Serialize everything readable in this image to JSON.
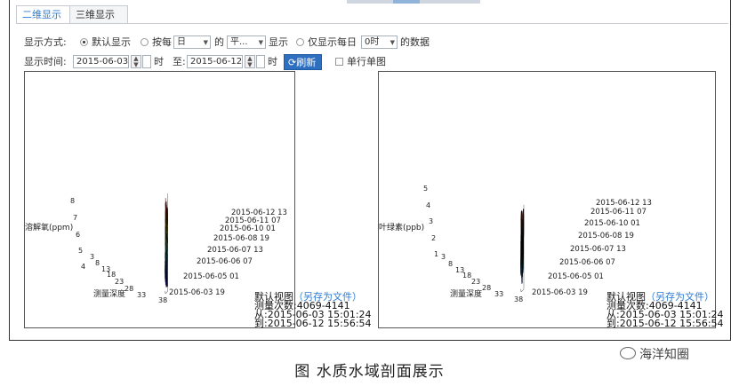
{
  "tabs": [
    {
      "label": "二维显示",
      "active": true
    },
    {
      "label": "三维显示",
      "active": false
    }
  ],
  "display_mode": {
    "label": "显示方式:",
    "option_default": "默认显示",
    "option_by_each": "按每",
    "unit_select": "日",
    "of": "的",
    "stat_select": "平...",
    "show": "显示",
    "option_only_daily": "仅显示每日",
    "hour_select": "0时",
    "data_suffix": "的数据"
  },
  "display_time": {
    "label": "显示时间:",
    "start_date": "2015-06-03",
    "start_hour_unit": "时",
    "to": "至:",
    "end_date": "2015-06-12",
    "end_hour_unit": "时",
    "refresh_label": "刷新",
    "single_row_label": "单行单图"
  },
  "panels": [
    {
      "ylabel": "溶解氧(ppm)",
      "z_ticks": [
        "8",
        "7",
        "6",
        "5",
        "4"
      ],
      "date_ticks": [
        "2015-06-12 13",
        "2015-06-11 07",
        "2015-06-10 01",
        "2015-06-08 19",
        "2015-06-07 13",
        "2015-06-06 07",
        "2015-06-05 01",
        "2015-06-03 19"
      ],
      "depth_ticks": [
        "3",
        "8",
        "13",
        "18",
        "23",
        "28",
        "33",
        "38"
      ],
      "xlabel": "测量深度",
      "info": {
        "view": "默认视图",
        "save_link": "另存为文件",
        "count_label": "测量次数:",
        "count": "4069-4141",
        "from_label": "从:",
        "from": "2015-06-03 15:01:24",
        "to_label": "到:",
        "to": "2015-06-12 15:56:54"
      }
    },
    {
      "ylabel": "叶绿素(ppb)",
      "z_ticks": [
        "5",
        "4",
        "3",
        "2",
        "1"
      ],
      "date_ticks": [
        "2015-06-12 13",
        "2015-06-11 07",
        "2015-06-10 01",
        "2015-06-08 19",
        "2015-06-07 13",
        "2015-06-06 07",
        "2015-06-05 01",
        "2015-06-03 19"
      ],
      "depth_ticks": [
        "3",
        "8",
        "13",
        "18",
        "23",
        "28",
        "33",
        "38"
      ],
      "xlabel": "测量深度",
      "info": {
        "view": "默认视图",
        "save_link": "另存为文件",
        "count_label": "测量次数:",
        "count": "4069-4141",
        "from_label": "从:",
        "from": "2015-06-03 15:01:24",
        "to_label": "到:",
        "to": "2015-06-12 15:56:54"
      }
    }
  ],
  "caption": "图  水质水域剖面展示",
  "watermark": "海洋知圈",
  "colors": {
    "accent": "#2b7bd3",
    "button": "#2f6fc0"
  }
}
